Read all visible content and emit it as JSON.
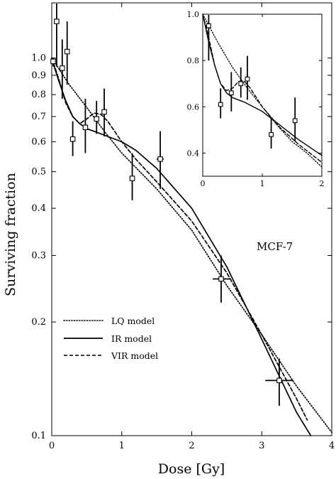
{
  "chart_data": [
    {
      "type": "line",
      "panel": "main",
      "xlabel": "Dose [Gy]",
      "ylabel": "Surviving fraction",
      "xlim": [
        0,
        4
      ],
      "ylim": [
        0.1,
        1.4
      ],
      "yscale": "log",
      "x_ticks": [
        0,
        1,
        2,
        3,
        4
      ],
      "y_ticks": [
        0.1,
        0.2,
        0.3,
        0.4,
        0.5,
        0.6,
        0.7,
        0.8,
        0.9,
        1.0
      ],
      "y_tick_labels": [
        "0.1",
        "0.2",
        "0.3",
        "0.4",
        "0.5",
        "0.6",
        "0.7",
        "0.8",
        "0.9",
        "1.0"
      ],
      "grid": false,
      "legend_position": "bottom-left",
      "annotation": "MCF-7",
      "series": [
        {
          "name": "LQ model",
          "style": "dotted",
          "x": [
            0,
            0.25,
            0.5,
            0.75,
            1.0,
            1.5,
            2.0,
            2.5,
            3.0,
            3.5,
            4.0
          ],
          "y": [
            1.0,
            0.85,
            0.74,
            0.64,
            0.56,
            0.45,
            0.35,
            0.25,
            0.185,
            0.135,
            0.102
          ]
        },
        {
          "name": "IR model",
          "style": "solid",
          "x": [
            0,
            0.05,
            0.1,
            0.2,
            0.3,
            0.4,
            0.5,
            0.6,
            0.8,
            1.0,
            1.2,
            1.5,
            2.0,
            2.5,
            3.0,
            3.5,
            3.7
          ],
          "y": [
            1.0,
            0.93,
            0.87,
            0.77,
            0.7,
            0.67,
            0.65,
            0.64,
            0.62,
            0.6,
            0.57,
            0.51,
            0.4,
            0.28,
            0.18,
            0.115,
            0.1
          ]
        },
        {
          "name": "VIR model",
          "style": "dashed",
          "x": [
            0,
            0.1,
            0.2,
            0.3,
            0.4,
            0.5,
            0.6,
            0.7,
            0.8,
            1.0,
            1.2,
            1.5,
            2.0,
            2.5,
            3.0,
            3.5,
            3.65
          ],
          "y": [
            1.0,
            0.88,
            0.76,
            0.7,
            0.67,
            0.69,
            0.715,
            0.71,
            0.68,
            0.6,
            0.54,
            0.47,
            0.37,
            0.27,
            0.185,
            0.125,
            0.11
          ]
        }
      ],
      "data_points": [
        {
          "x": 0.02,
          "y": 0.98,
          "y_err": [
            0.95,
            1.0
          ]
        },
        {
          "x": 0.07,
          "y": 1.25,
          "y_err": [
            0.95,
            1.7
          ]
        },
        {
          "x": 0.15,
          "y": 0.94,
          "y_err": [
            0.78,
            1.12
          ]
        },
        {
          "x": 0.22,
          "y": 1.04,
          "y_err": [
            0.85,
            1.25
          ]
        },
        {
          "x": 0.3,
          "y": 0.61,
          "y_err": [
            0.55,
            0.68
          ]
        },
        {
          "x": 0.48,
          "y": 0.655,
          "y_err": [
            0.56,
            0.78
          ]
        },
        {
          "x": 0.64,
          "y": 0.69,
          "y_err": [
            0.63,
            0.77
          ]
        },
        {
          "x": 0.75,
          "y": 0.72,
          "y_err": [
            0.62,
            0.83
          ]
        },
        {
          "x": 1.15,
          "y": 0.48,
          "y_err": [
            0.42,
            0.56
          ]
        },
        {
          "x": 1.55,
          "y": 0.54,
          "y_err": [
            0.45,
            0.64
          ],
          "x_err": [
            1.5,
            1.6
          ]
        },
        {
          "x": 2.42,
          "y": 0.26,
          "y_err": [
            0.225,
            0.3
          ],
          "x_err": [
            2.3,
            2.55
          ]
        },
        {
          "x": 3.25,
          "y": 0.14,
          "y_err": [
            0.12,
            0.16
          ],
          "x_err": [
            3.05,
            3.45
          ]
        }
      ]
    },
    {
      "type": "line",
      "panel": "inset",
      "xlim": [
        0,
        2
      ],
      "ylim": [
        0.3,
        1.0
      ],
      "x_ticks": [
        0,
        1,
        2
      ],
      "y_ticks": [
        0.4,
        0.6,
        0.8,
        1.0
      ],
      "y_tick_labels": [
        "0.4",
        "0.6",
        "0.8",
        "1.0"
      ],
      "grid": false,
      "series": [
        {
          "name": "LQ model",
          "style": "dotted",
          "x": [
            0,
            0.25,
            0.5,
            0.75,
            1.0,
            1.25,
            1.5,
            1.75,
            2.0
          ],
          "y": [
            1.0,
            0.88,
            0.77,
            0.68,
            0.6,
            0.52,
            0.45,
            0.4,
            0.34
          ]
        },
        {
          "name": "IR model",
          "style": "solid",
          "x": [
            0,
            0.05,
            0.1,
            0.2,
            0.3,
            0.4,
            0.5,
            0.7,
            1.0,
            1.3,
            1.6,
            2.0
          ],
          "y": [
            1.0,
            0.94,
            0.88,
            0.78,
            0.7,
            0.66,
            0.64,
            0.62,
            0.58,
            0.52,
            0.46,
            0.39
          ]
        },
        {
          "name": "VIR model",
          "style": "dashed",
          "x": [
            0,
            0.1,
            0.2,
            0.3,
            0.4,
            0.5,
            0.6,
            0.7,
            0.8,
            1.0,
            1.3,
            1.6,
            2.0
          ],
          "y": [
            1.0,
            0.9,
            0.78,
            0.7,
            0.67,
            0.68,
            0.71,
            0.71,
            0.68,
            0.6,
            0.51,
            0.44,
            0.36
          ]
        }
      ],
      "data_points": [
        {
          "x": 0.1,
          "y": 0.95,
          "y_err": [
            0.8,
            1.0
          ]
        },
        {
          "x": 0.3,
          "y": 0.61,
          "y_err": [
            0.55,
            0.68
          ]
        },
        {
          "x": 0.48,
          "y": 0.66,
          "y_err": [
            0.58,
            0.75
          ]
        },
        {
          "x": 0.64,
          "y": 0.7,
          "y_err": [
            0.64,
            0.77
          ]
        },
        {
          "x": 0.75,
          "y": 0.72,
          "y_err": [
            0.63,
            0.82
          ]
        },
        {
          "x": 1.15,
          "y": 0.48,
          "y_err": [
            0.42,
            0.55
          ]
        },
        {
          "x": 1.55,
          "y": 0.54,
          "y_err": [
            0.45,
            0.64
          ]
        }
      ]
    }
  ]
}
